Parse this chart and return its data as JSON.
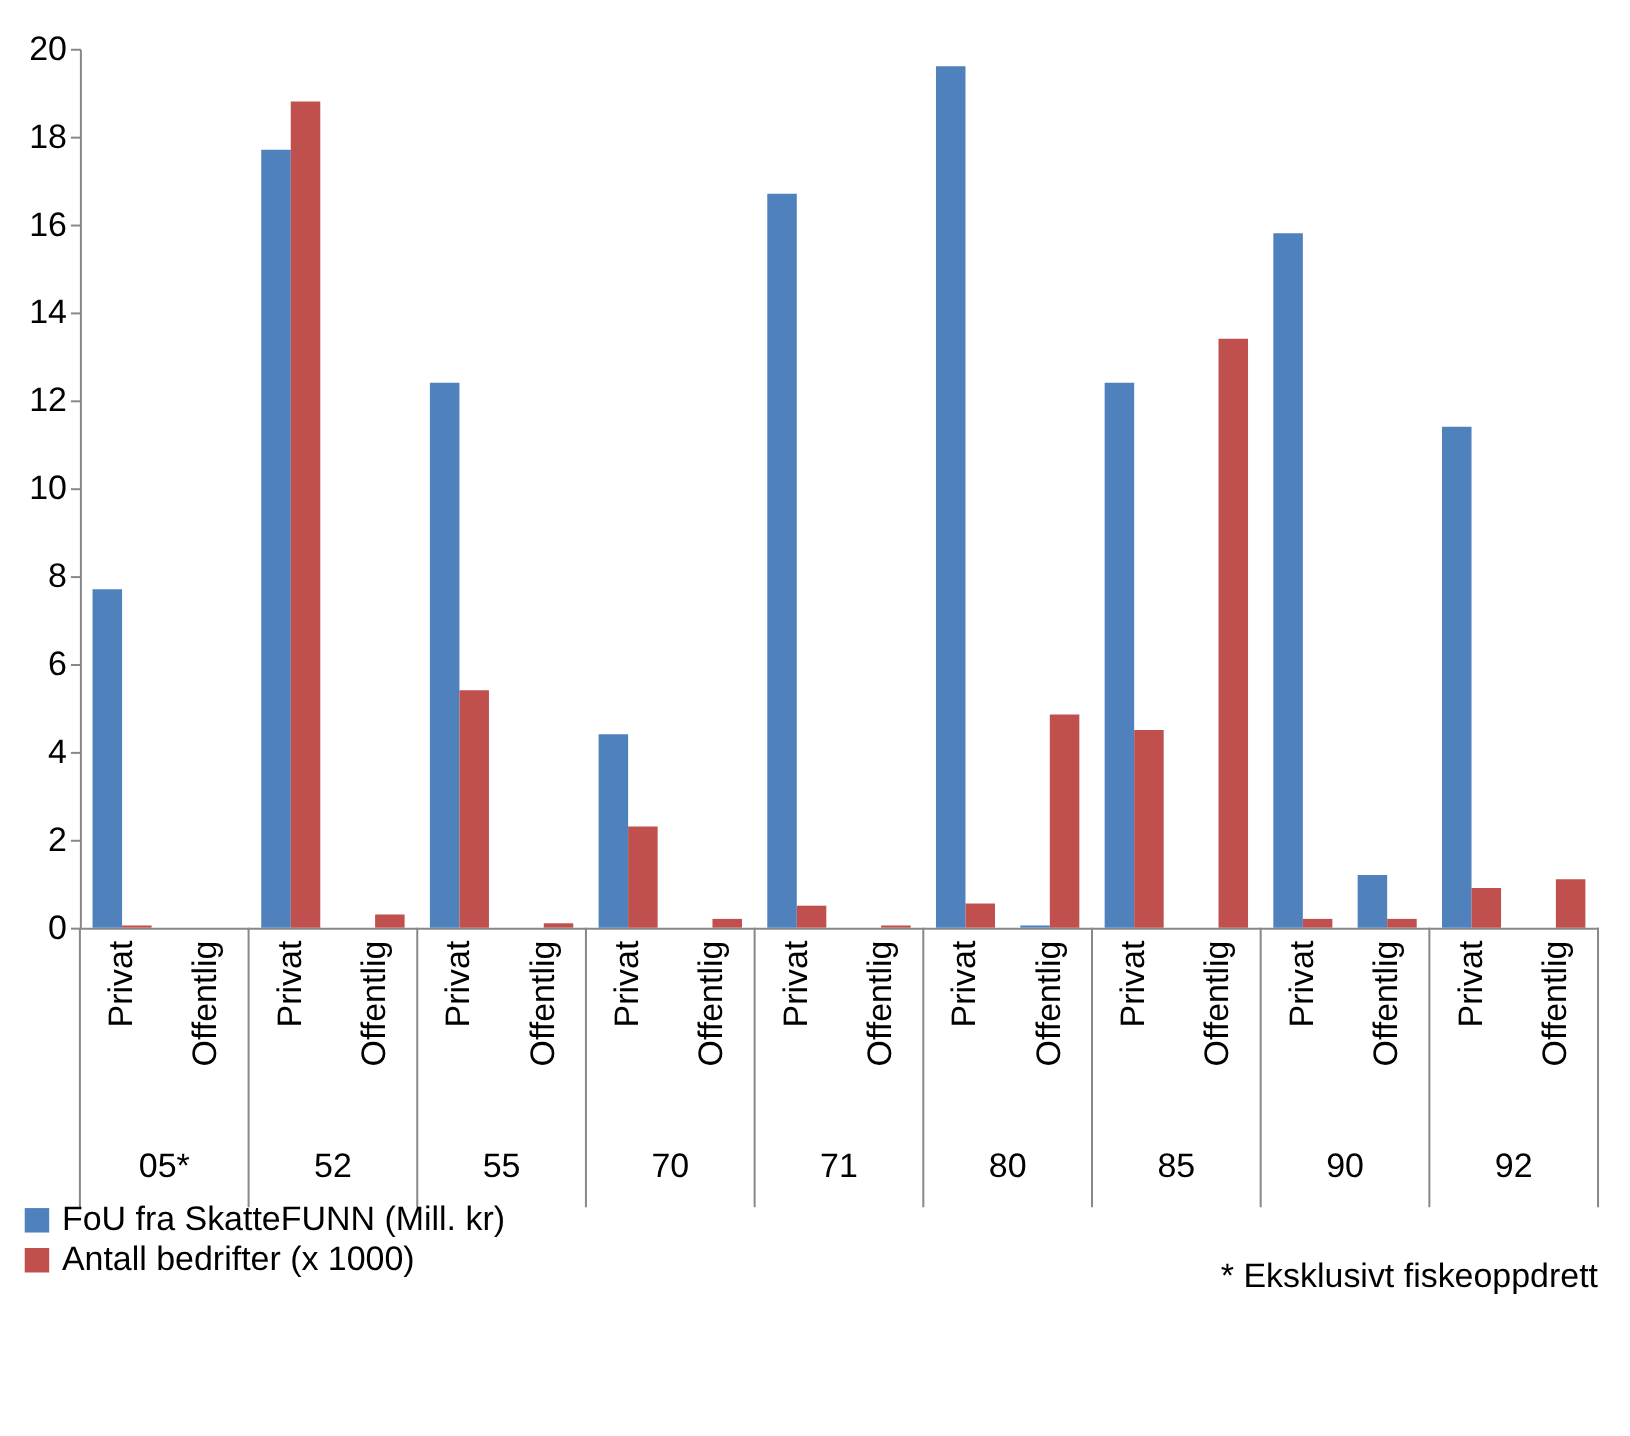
{
  "chart_data": {
    "type": "bar",
    "categories": [
      "Privat",
      "Offentlig",
      "Privat",
      "Offentlig",
      "Privat",
      "Offentlig",
      "Privat",
      "Offentlig",
      "Privat",
      "Offentlig",
      "Privat",
      "Offentlig",
      "Privat",
      "Offentlig",
      "Privat",
      "Offentlig",
      "Privat",
      "Offentlig"
    ],
    "series": [
      {
        "name": "FoU fra SkatteFUNN (Mill. kr)",
        "color": "#4f81bd",
        "values": [
          7.7,
          0,
          17.7,
          0,
          12.4,
          0,
          4.4,
          0,
          16.7,
          0,
          19.6,
          0.05,
          12.4,
          0,
          15.8,
          1.2,
          11.4,
          0
        ]
      },
      {
        "name": "Antall bedrifter (x 1000)",
        "color": "#c0504d",
        "values": [
          0.05,
          0,
          18.8,
          0.3,
          5.4,
          0.1,
          2.3,
          0.2,
          0.5,
          0.05,
          0.55,
          4.85,
          4.5,
          13.4,
          0.2,
          0.2,
          0.9,
          1.1
        ]
      }
    ],
    "ylim": [
      0,
      20
    ],
    "yticks": [
      0,
      2,
      4,
      6,
      8,
      10,
      12,
      14,
      16,
      18,
      20
    ],
    "grid": false,
    "legend": "bottom left",
    "annotations": [
      "05*",
      "52",
      "55",
      "70",
      "71",
      "80",
      "85",
      "90",
      "92",
      "* Eksklusivt fiskeoppdrett"
    ]
  }
}
